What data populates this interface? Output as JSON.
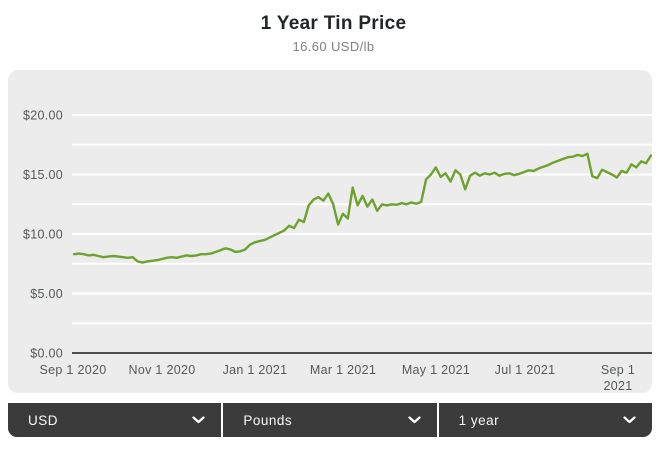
{
  "header": {
    "title": "1 Year Tin Price",
    "subtitle": "16.60 USD/lb"
  },
  "chart_data": {
    "type": "line",
    "title": "1 Year Tin Price",
    "current_price_label": "16.60 USD/lb",
    "unit": "USD/lb",
    "xlabel": "",
    "ylabel": "",
    "ylim": [
      0,
      20
    ],
    "y_minor_step": 2.5,
    "grid": "horizontal white gridlines on light gray panel, minor lines every 2.5",
    "legend": "none",
    "line_color": "#6ca32c",
    "y_ticks": [
      {
        "value": 20,
        "label": "$20.00"
      },
      {
        "value": 15,
        "label": "$15.00"
      },
      {
        "value": 10,
        "label": "$10.00"
      },
      {
        "value": 5,
        "label": "$5.00"
      },
      {
        "value": 0,
        "label": "$0.00"
      }
    ],
    "x_tick_labels": [
      "Sep 1 2020",
      "Nov 1 2020",
      "Jan 1 2021",
      "Mar 1 2021",
      "May 1 2021",
      "Jul 1 2021",
      "Sep 1\n2021"
    ],
    "series": [
      {
        "name": "Tin price (USD/lb)",
        "values": [
          8.3,
          8.35,
          8.3,
          8.2,
          8.25,
          8.15,
          8.05,
          8.1,
          8.15,
          8.1,
          8.05,
          8.0,
          8.05,
          7.7,
          7.6,
          7.7,
          7.75,
          7.8,
          7.9,
          8.0,
          8.05,
          8.0,
          8.1,
          8.2,
          8.15,
          8.2,
          8.3,
          8.3,
          8.35,
          8.5,
          8.65,
          8.8,
          8.7,
          8.5,
          8.55,
          8.7,
          9.1,
          9.3,
          9.4,
          9.5,
          9.7,
          9.9,
          10.1,
          10.3,
          10.7,
          10.5,
          11.2,
          11.0,
          12.4,
          12.9,
          13.1,
          12.8,
          13.4,
          12.5,
          10.8,
          11.7,
          11.3,
          13.9,
          12.4,
          13.2,
          12.3,
          12.9,
          11.95,
          12.5,
          12.4,
          12.5,
          12.45,
          12.6,
          12.5,
          12.65,
          12.55,
          12.7,
          14.6,
          15.0,
          15.6,
          14.8,
          15.1,
          14.4,
          15.35,
          15.0,
          13.75,
          14.9,
          15.15,
          14.9,
          15.1,
          15.0,
          15.15,
          14.9,
          15.05,
          15.1,
          14.95,
          15.05,
          15.2,
          15.35,
          15.3,
          15.5,
          15.65,
          15.8,
          16.0,
          16.15,
          16.3,
          16.45,
          16.5,
          16.65,
          16.55,
          16.75,
          14.85,
          14.7,
          15.4,
          15.2,
          15.0,
          14.75,
          15.3,
          15.15,
          15.85,
          15.6,
          16.1,
          15.95,
          16.6
        ]
      }
    ]
  },
  "controls": {
    "currency": {
      "value": "USD"
    },
    "weight_unit": {
      "value": "Pounds"
    },
    "time_range": {
      "value": "1 year"
    }
  },
  "icons": {
    "select_chevron": "chevron-down"
  },
  "colors": {
    "accent_line": "#6ca32c",
    "panel_bg": "#ececec",
    "grid_line": "#ffffff",
    "axis_line": "#4d4d4d",
    "tick_text": "#54585b",
    "title_text": "#222629",
    "subtitle_text": "#7f8385",
    "controls_bg": "#3b3b3b",
    "controls_text": "#fafafa"
  }
}
